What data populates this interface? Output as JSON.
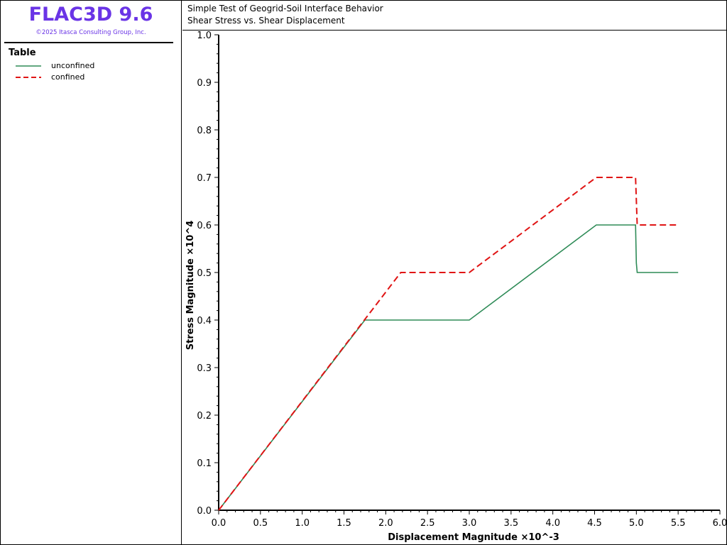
{
  "app": {
    "title": "FLAC3D 9.6",
    "copyright": "©2025 Itasca Consulting Group, Inc.",
    "brand_color": "#6a34e6"
  },
  "legend": {
    "heading": "Table",
    "items": [
      {
        "label": "unconfined",
        "color": "#2e8b57",
        "style": "solid"
      },
      {
        "label": "confined",
        "color": "#e01414",
        "style": "dashed"
      }
    ]
  },
  "plot": {
    "title_line1": "Simple Test of Geogrid-Soil Interface Behavior",
    "title_line2": "Shear Stress vs. Shear Displacement"
  },
  "chart_data": {
    "type": "line",
    "xlabel": "Displacement Magnitude ×10^-3",
    "ylabel": "Stress Magnitude ×10^4",
    "xlim": [
      0,
      6.0
    ],
    "ylim": [
      0,
      1.0
    ],
    "xticks": [
      0.0,
      0.5,
      1.0,
      1.5,
      2.0,
      2.5,
      3.0,
      3.5,
      4.0,
      4.5,
      5.0,
      5.5,
      6.0
    ],
    "yticks": [
      0.0,
      0.1,
      0.2,
      0.3,
      0.4,
      0.5,
      0.6,
      0.7,
      0.8,
      0.9,
      1.0
    ],
    "tick_decimals": 1,
    "grid": false,
    "legend_position": "left panel",
    "series": [
      {
        "name": "unconfined",
        "color": "#2e8b57",
        "style": "solid",
        "x": [
          0.0,
          1.75,
          3.0,
          4.52,
          4.99,
          5.0,
          5.01,
          5.5
        ],
        "y": [
          0.0,
          0.4,
          0.4,
          0.6,
          0.6,
          0.52,
          0.5,
          0.5
        ]
      },
      {
        "name": "confined",
        "color": "#e01414",
        "style": "dashed",
        "x": [
          0.0,
          2.18,
          3.0,
          4.52,
          4.99,
          5.01,
          5.5
        ],
        "y": [
          0.0,
          0.5,
          0.5,
          0.7,
          0.7,
          0.6,
          0.6
        ]
      }
    ]
  }
}
